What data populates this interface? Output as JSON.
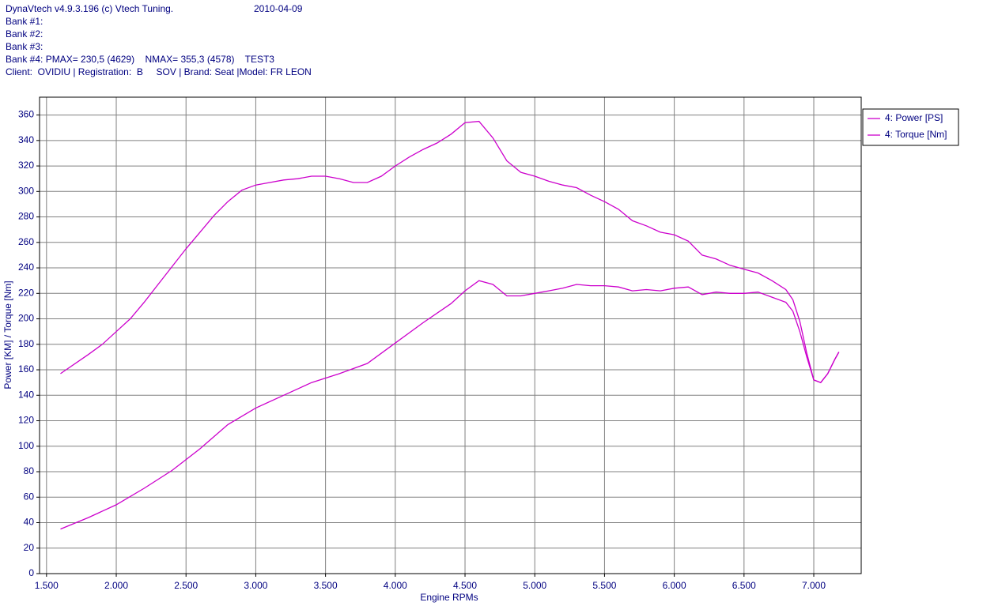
{
  "header": {
    "title": "DynaVtech v4.9.3.196 (c) Vtech Tuning.",
    "date": "2010-04-09",
    "lines": [
      "Bank #1:",
      "Bank #2:",
      "Bank #3:",
      "Bank #4: PMAX= 230,5 (4629)    NMAX= 355,3 (4578)    TEST3",
      "Client:  OVIDIU | Registration:  B     SOV | Brand: Seat |Model: FR LEON"
    ]
  },
  "chart_data": {
    "type": "line",
    "x_label": "Engine RPMs",
    "y_label": "Power [KM] / Torque [Nm]",
    "xlim": [
      1450,
      7340
    ],
    "ylim": [
      0,
      374
    ],
    "grid": true,
    "legend": "top-right-outside",
    "xticks": [
      {
        "value": 1500,
        "label": "1.500"
      },
      {
        "value": 2000,
        "label": "2.000"
      },
      {
        "value": 2500,
        "label": "2.500"
      },
      {
        "value": 3000,
        "label": "3.000"
      },
      {
        "value": 3500,
        "label": "3.500"
      },
      {
        "value": 4000,
        "label": "4.000"
      },
      {
        "value": 4500,
        "label": "4.500"
      },
      {
        "value": 5000,
        "label": "5.000"
      },
      {
        "value": 5500,
        "label": "5.500"
      },
      {
        "value": 6000,
        "label": "6.000"
      },
      {
        "value": 6500,
        "label": "6.500"
      },
      {
        "value": 7000,
        "label": "7.000"
      }
    ],
    "yticks": [
      0,
      20,
      40,
      60,
      80,
      100,
      120,
      140,
      160,
      180,
      200,
      220,
      240,
      260,
      280,
      300,
      320,
      340,
      360
    ],
    "series": [
      {
        "name": "4: Power [PS]",
        "color": "#cc00cc",
        "x": [
          1600,
          1800,
          2000,
          2200,
          2400,
          2600,
          2800,
          3000,
          3200,
          3400,
          3600,
          3800,
          4000,
          4200,
          4400,
          4500,
          4600,
          4700,
          4800,
          4900,
          5000,
          5100,
          5200,
          5300,
          5400,
          5500,
          5600,
          5700,
          5800,
          5900,
          6000,
          6100,
          6200,
          6300,
          6400,
          6500,
          6600,
          6700,
          6800,
          6850,
          6900,
          6950,
          7000,
          7050,
          7100,
          7150,
          7180
        ],
        "values": [
          35,
          44,
          54,
          67,
          81,
          98,
          117,
          130,
          140,
          150,
          157,
          165,
          181,
          197,
          212,
          222,
          230,
          227,
          218,
          218,
          220,
          222,
          224,
          227,
          226,
          226,
          225,
          222,
          223,
          222,
          224,
          225,
          219,
          221,
          220,
          220,
          221,
          217,
          213,
          206,
          190,
          170,
          152,
          150,
          157,
          168,
          174
        ]
      },
      {
        "name": "4: Torque [Nm]",
        "color": "#cc00cc",
        "x": [
          1600,
          1800,
          1900,
          2000,
          2100,
          2200,
          2300,
          2400,
          2500,
          2600,
          2700,
          2800,
          2900,
          3000,
          3100,
          3200,
          3300,
          3400,
          3500,
          3600,
          3700,
          3800,
          3900,
          4000,
          4100,
          4200,
          4300,
          4400,
          4500,
          4600,
          4700,
          4800,
          4900,
          5000,
          5100,
          5200,
          5300,
          5400,
          5500,
          5600,
          5700,
          5800,
          5900,
          6000,
          6100,
          6200,
          6300,
          6400,
          6500,
          6600,
          6700,
          6800,
          6850,
          6900,
          6950,
          7000,
          7050,
          7100,
          7150,
          7180
        ],
        "values": [
          157,
          172,
          180,
          190,
          200,
          213,
          227,
          241,
          255,
          268,
          281,
          292,
          301,
          305,
          307,
          309,
          310,
          312,
          312,
          310,
          307,
          307,
          312,
          320,
          327,
          333,
          338,
          345,
          354,
          355,
          342,
          324,
          315,
          312,
          308,
          305,
          303,
          297,
          292,
          286,
          277,
          273,
          268,
          266,
          261,
          250,
          247,
          242,
          239,
          236,
          230,
          223,
          215,
          198,
          173,
          152,
          150,
          157,
          168,
          174
        ]
      }
    ]
  }
}
